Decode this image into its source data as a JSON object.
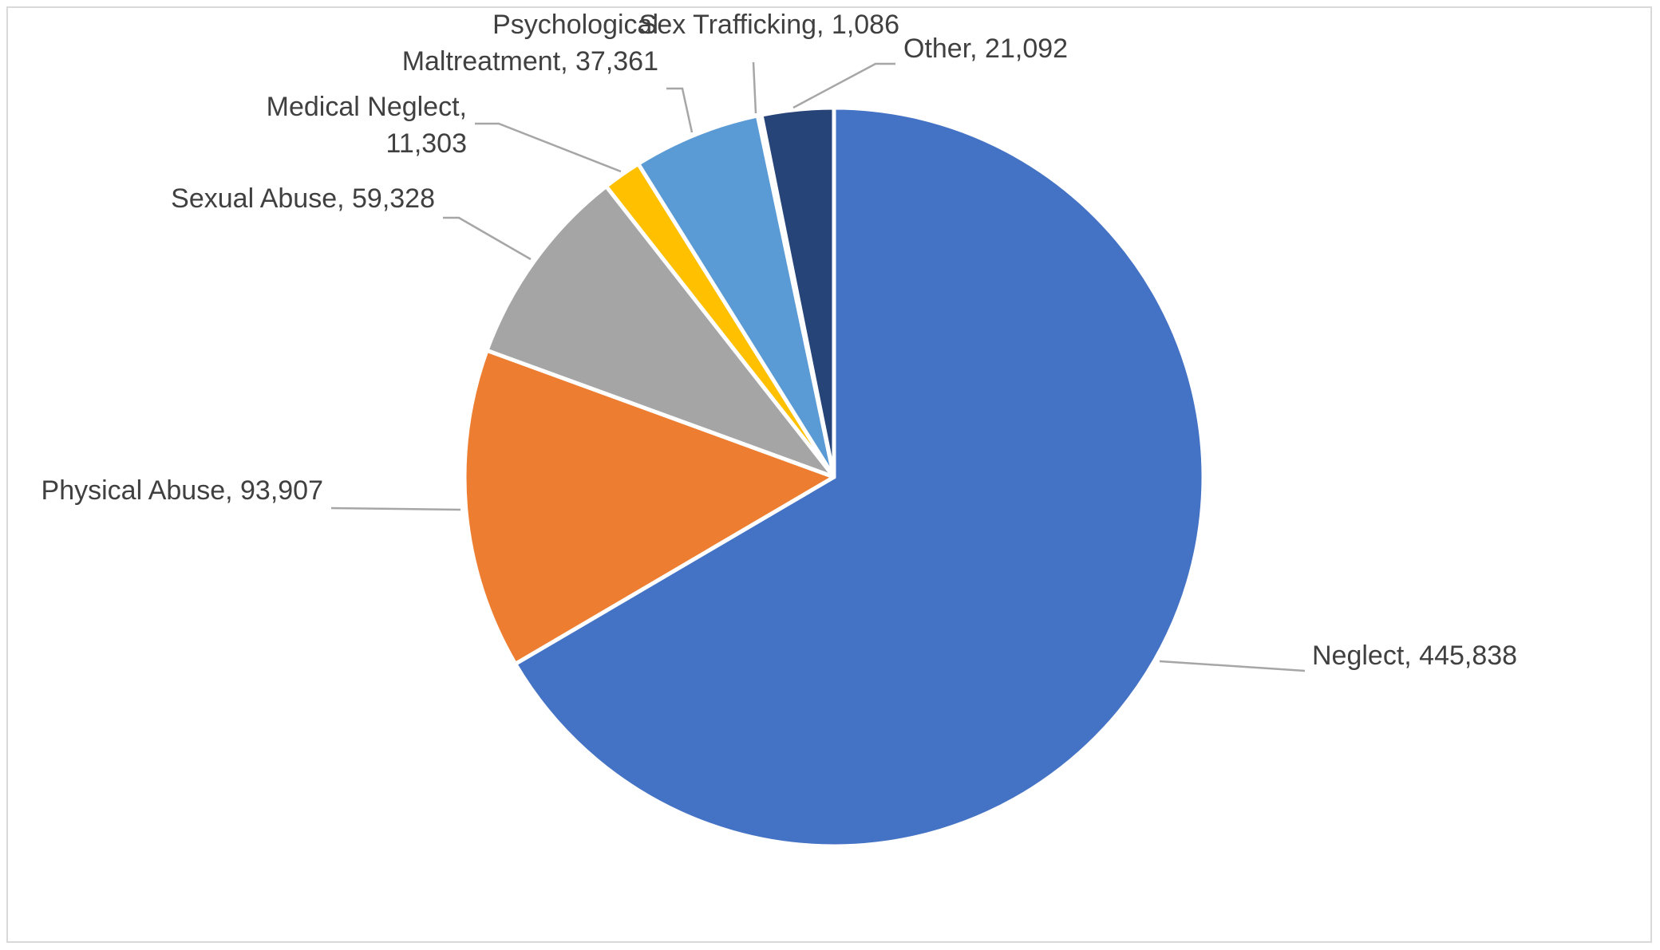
{
  "chart_data": {
    "type": "pie",
    "title": "",
    "legend": "none",
    "slices": [
      {
        "label": "Neglect",
        "value": 445838,
        "display": "445,838",
        "color": "#4472C4",
        "label_lines": [
          "Neglect, 445,838"
        ]
      },
      {
        "label": "Physical Abuse",
        "value": 93907,
        "display": "93,907",
        "color": "#ED7D31",
        "label_lines": [
          "Physical Abuse, 93,907"
        ]
      },
      {
        "label": "Sexual Abuse",
        "value": 59328,
        "display": "59,328",
        "color": "#A5A5A5",
        "label_lines": [
          "Sexual Abuse, 59,328"
        ]
      },
      {
        "label": "Medical Neglect",
        "value": 11303,
        "display": "11,303",
        "color": "#FFC000",
        "label_lines": [
          "Medical Neglect,",
          "11,303"
        ]
      },
      {
        "label": "Psychological Maltreatment",
        "value": 37361,
        "display": "37,361",
        "color": "#5B9BD5",
        "label_lines": [
          "Psychological",
          "Maltreatment, 37,361"
        ]
      },
      {
        "label": "Sex Trafficking",
        "value": 1086,
        "display": "1,086",
        "color": "#70AD47",
        "label_lines": [
          "Sex Trafficking, 1,086"
        ]
      },
      {
        "label": "Other",
        "value": 21092,
        "display": "21,092",
        "color": "#264478",
        "label_lines": [
          "Other, 21,092"
        ]
      }
    ]
  }
}
